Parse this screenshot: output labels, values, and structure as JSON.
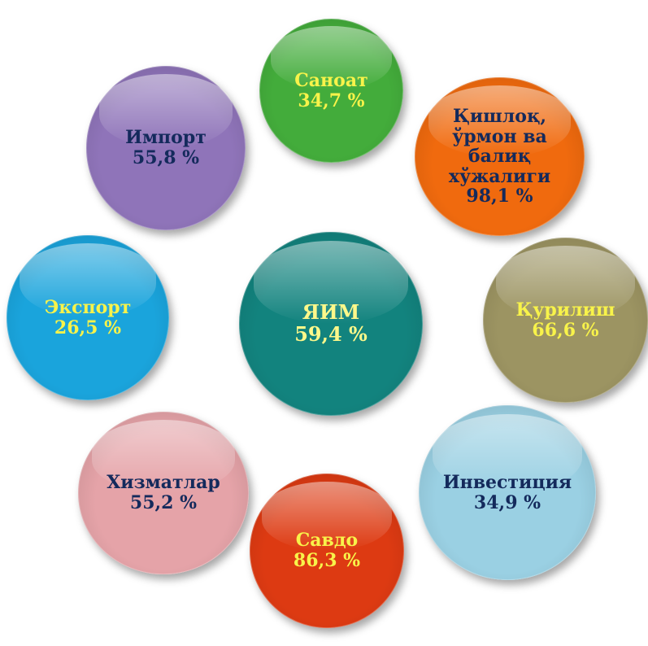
{
  "center": {
    "label": "ЯИМ",
    "value": "59,4 %",
    "color": "#12837e",
    "text_color": "#fdf88a"
  },
  "nodes": [
    {
      "key": "sanoat",
      "lines": [
        "Саноат"
      ],
      "value": "34,7 %",
      "color": "#43ac3b",
      "text_color": "#f8f34a"
    },
    {
      "key": "qishloq",
      "lines": [
        "Қишлоқ,",
        "ўрмон ва",
        "балиқ",
        "хўжалиги"
      ],
      "value": "98,1 %",
      "color": "#f06a0e",
      "text_color": "#142a5c"
    },
    {
      "key": "qurilish",
      "lines": [
        "Қурилиш"
      ],
      "value": "66,6 %",
      "color": "#9c9462",
      "text_color": "#f8f34a"
    },
    {
      "key": "investitsiya",
      "lines": [
        "Инвестиция"
      ],
      "value": "34,9 %",
      "color": "#9ad0e3",
      "text_color": "#142a5c"
    },
    {
      "key": "savdo",
      "lines": [
        "Савдо"
      ],
      "value": "86,3 %",
      "color": "#dd3a12",
      "text_color": "#f8f34a"
    },
    {
      "key": "xizmatlar",
      "lines": [
        "Хизматлар"
      ],
      "value": "55,2 %",
      "color": "#e5a3a8",
      "text_color": "#142a5c"
    },
    {
      "key": "eksport",
      "lines": [
        "Экспорт"
      ],
      "value": "26,5 %",
      "color": "#1aa4dc",
      "text_color": "#f8f34a"
    },
    {
      "key": "import",
      "lines": [
        "Импорт"
      ],
      "value": "55,8 %",
      "color": "#8f74b9",
      "text_color": "#142a5c"
    }
  ]
}
